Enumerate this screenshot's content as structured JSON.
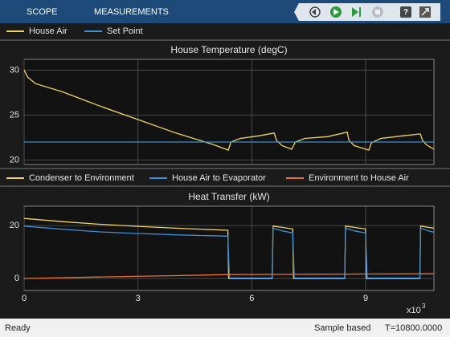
{
  "toolbar": {
    "tabs": [
      "SCOPE",
      "MEASUREMENTS"
    ]
  },
  "chart_data": [
    {
      "type": "line",
      "title": "House Temperature (degC)",
      "xlim": [
        0,
        10800
      ],
      "ylim": [
        19.5,
        31.2
      ],
      "xticks": [
        0,
        3000,
        6000,
        9000
      ],
      "yticks": [
        20,
        25,
        30
      ],
      "grid": true,
      "series": [
        {
          "name": "House Air",
          "color": "#f2d35f",
          "x": [
            0,
            100,
            300,
            1000,
            2000,
            3000,
            4000,
            5000,
            5380,
            5450,
            5700,
            6200,
            6590,
            6650,
            6800,
            7050,
            7150,
            7400,
            8000,
            8515,
            8560,
            8700,
            9087,
            9150,
            9400,
            10000,
            10442,
            10500,
            10600,
            10800
          ],
          "values": [
            30,
            29.2,
            28.5,
            27.6,
            26.0,
            24.5,
            23.0,
            21.7,
            21.1,
            22.0,
            22.4,
            22.7,
            23.0,
            22.2,
            21.6,
            21.2,
            22.0,
            22.4,
            22.6,
            23.1,
            22.2,
            21.6,
            21.1,
            21.9,
            22.4,
            22.7,
            22.9,
            22.2,
            21.7,
            21.2
          ]
        },
        {
          "name": "Set Point",
          "color": "#3d8fd6",
          "x": [
            0,
            10800
          ],
          "values": [
            22,
            22
          ]
        }
      ]
    },
    {
      "type": "line",
      "title": "Heat Transfer (kW)",
      "xlim": [
        0,
        10800
      ],
      "ylim": [
        -4.5,
        27.3
      ],
      "xticks": [
        0,
        {
          "value": 3000,
          "label": "3"
        },
        {
          "value": 6000,
          "label": "6"
        },
        {
          "value": 9000,
          "label": "9"
        }
      ],
      "x_exponent": {
        "base": "x10",
        "power": "3"
      },
      "yticks": [
        0,
        20
      ],
      "grid": true,
      "series": [
        {
          "name": "Condenser to Environment",
          "color": "#f2d35f",
          "x": [
            0,
            1000,
            2000,
            3000,
            4000,
            5370,
            5390,
            6540,
            6560,
            6800,
            7080,
            7100,
            8450,
            8470,
            8700,
            9000,
            9020,
            10430,
            10450,
            10650,
            10800
          ],
          "values": [
            22.7,
            21.5,
            20.5,
            19.7,
            19.0,
            18.2,
            0,
            0,
            19.8,
            19.3,
            18.7,
            0,
            0,
            19.8,
            19.3,
            18.7,
            0,
            0,
            19.8,
            19.3,
            19.0
          ]
        },
        {
          "name": "House Air to Evaporator",
          "color": "#3d8fd6",
          "x": [
            0,
            1000,
            2000,
            3000,
            4000,
            5370,
            5410,
            6540,
            6560,
            6800,
            7080,
            7120,
            8450,
            8470,
            8700,
            9000,
            9040,
            10430,
            10450,
            10650,
            10800
          ],
          "values": [
            19.8,
            18.6,
            17.6,
            17.0,
            16.5,
            16.0,
            0.2,
            0.2,
            19.0,
            18.0,
            17.2,
            0.2,
            0.2,
            19.0,
            18.0,
            17.2,
            0.2,
            0.2,
            19.0,
            18.0,
            17.5
          ]
        },
        {
          "name": "Environment to House Air",
          "color": "#e8733a",
          "x": [
            0,
            2000,
            4000,
            5400,
            7000,
            9000,
            10800
          ],
          "values": [
            0,
            0.6,
            1.1,
            1.5,
            1.6,
            1.7,
            1.8
          ]
        }
      ]
    }
  ],
  "status_bar": {
    "status": "Ready",
    "mode": "Sample based",
    "time": "T=10800.0000"
  }
}
